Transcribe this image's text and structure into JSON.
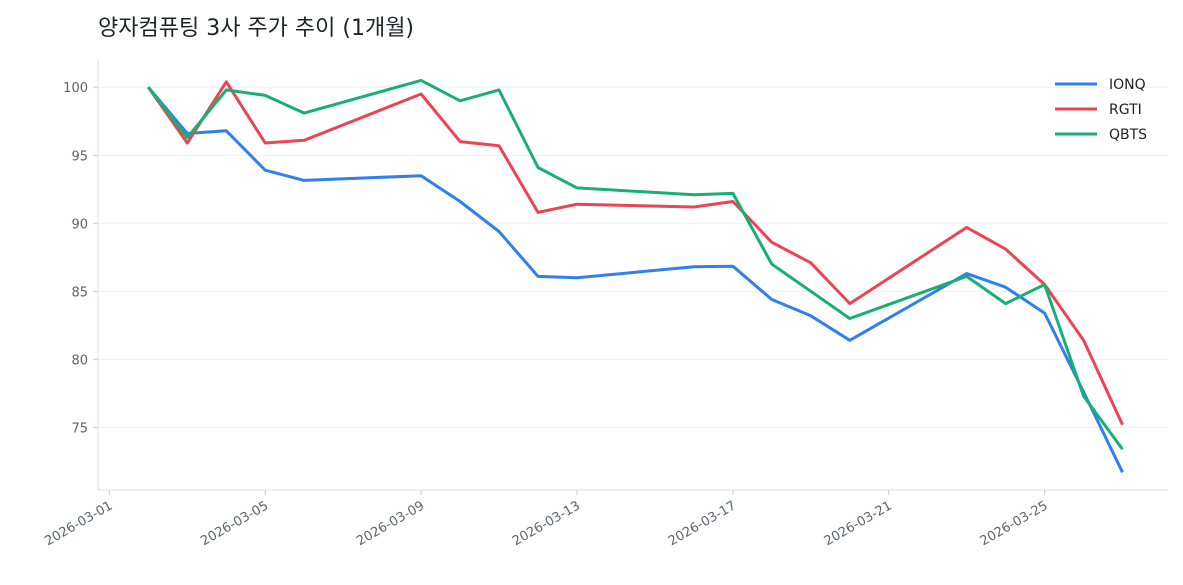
{
  "chart_data": {
    "type": "line",
    "title": "양자컴퓨팅 3사 주가 추이 (1개월)",
    "xlabel": "",
    "ylabel": "",
    "x": [
      "2026-03-02",
      "2026-03-03",
      "2026-03-04",
      "2026-03-05",
      "2026-03-06",
      "2026-03-09",
      "2026-03-10",
      "2026-03-11",
      "2026-03-12",
      "2026-03-13",
      "2026-03-16",
      "2026-03-17",
      "2026-03-18",
      "2026-03-19",
      "2026-03-20",
      "2026-03-23",
      "2026-03-24",
      "2026-03-25",
      "2026-03-26",
      "2026-03-27"
    ],
    "xticks": [
      "2026-03-01",
      "2026-03-05",
      "2026-03-09",
      "2026-03-13",
      "2026-03-17",
      "2026-03-21",
      "2026-03-25"
    ],
    "yticks": [
      75,
      80,
      85,
      90,
      95,
      100
    ],
    "xlim": [
      "2026-02-28T17:00",
      "2026-03-28T04:00"
    ],
    "ylim": [
      70.4,
      102
    ],
    "grid": "horizontal",
    "legend_position": "top-right",
    "series": [
      {
        "name": "IONQ",
        "color": "#2f7ff0",
        "values": [
          100,
          96.6,
          96.8,
          93.9,
          93.15,
          93.5,
          91.6,
          89.4,
          86.1,
          86.0,
          86.8,
          86.85,
          84.4,
          83.2,
          81.4,
          86.3,
          85.3,
          83.4,
          77.6,
          71.7
        ]
      },
      {
        "name": "RGTI",
        "color": "#eb4452",
        "values": [
          100,
          95.9,
          100.4,
          95.9,
          96.1,
          99.5,
          96.0,
          95.7,
          90.8,
          91.4,
          91.2,
          91.6,
          88.6,
          87.1,
          84.1,
          89.7,
          88.1,
          85.5,
          81.4,
          75.2
        ]
      },
      {
        "name": "QBTS",
        "color": "#19ae74",
        "values": [
          100,
          96.3,
          99.8,
          99.4,
          98.1,
          100.5,
          99.0,
          99.8,
          94.1,
          92.6,
          92.1,
          92.2,
          87.0,
          85.0,
          83.0,
          86.1,
          84.1,
          85.5,
          77.3,
          73.4
        ]
      }
    ]
  }
}
